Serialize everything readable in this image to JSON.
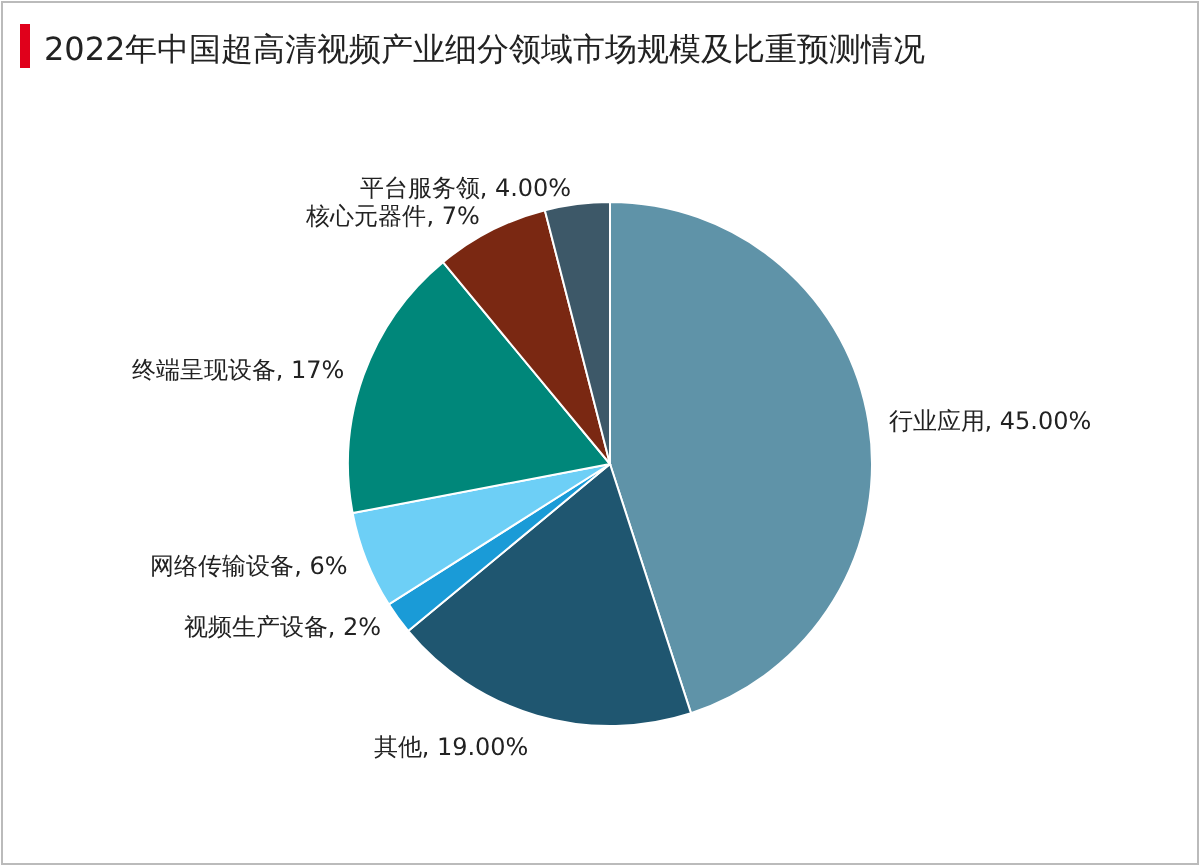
{
  "chart_data": {
    "type": "pie",
    "title": "2022年中国超高清视频产业细分领域市场规模及比重预测情况",
    "categories": [
      "行业应用",
      "其他",
      "视频生产设备",
      "网络传输设备",
      "终端呈现设备",
      "核心元器件",
      "平台服务领"
    ],
    "values": [
      45,
      19,
      2,
      6,
      17,
      7,
      4
    ],
    "colors": [
      "#5f93a8",
      "#1f5670",
      "#1a9bd7",
      "#6dcff6",
      "#00877a",
      "#7a2812",
      "#3d5868"
    ],
    "value_labels": [
      "45.00%",
      "19.00%",
      "2%",
      "6%",
      "17%",
      "7%",
      "4.00%"
    ]
  }
}
